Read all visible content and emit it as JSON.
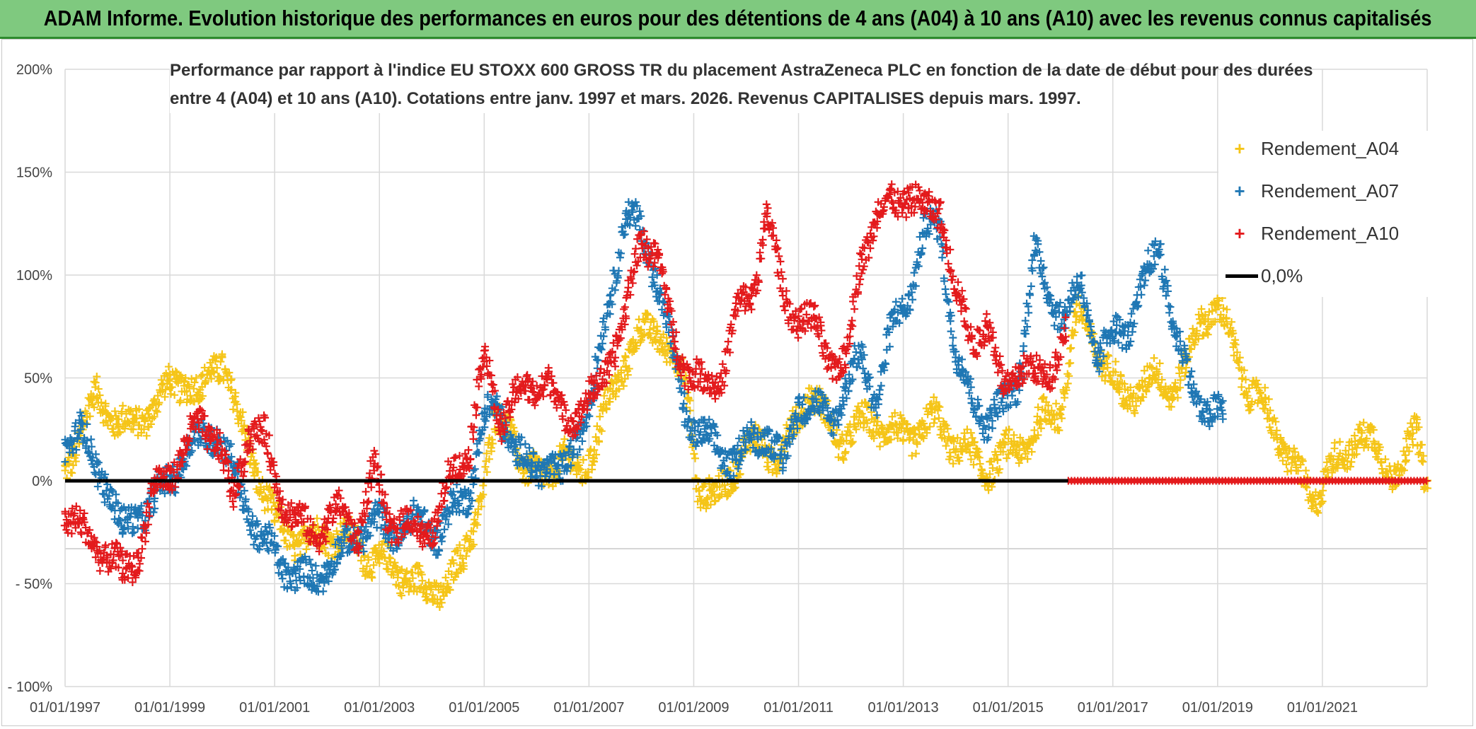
{
  "header": {
    "title": "ADAM Informe. Evolution historique des performances en euros pour des détentions de 4 ans (A04) à 10 ans (A10) avec les revenus connus capitalisés"
  },
  "chart_data": {
    "type": "scatter",
    "title_line1": "Performance par rapport à l'indice EU STOXX 600 GROSS TR  du placement AstraZeneca PLC en fonction de la date de début pour des durées",
    "title_line2": "entre 4 (A04) et 10 ans (A10). Cotations entre janv. 1997 et mars. 2026. Revenus CAPITALISES depuis mars. 1997.",
    "xlabel": "",
    "ylabel": "",
    "x_range": [
      1997.0,
      2023.0
    ],
    "ylim": [
      -100,
      200
    ],
    "y_ticks": [
      200,
      150,
      100,
      50,
      0,
      -50,
      -100
    ],
    "y_tick_labels": [
      "200%",
      "150%",
      "100%",
      "50%",
      "0%",
      "- 50%",
      "- 100%"
    ],
    "x_ticks": [
      1997,
      1999,
      2001,
      2003,
      2005,
      2007,
      2009,
      2011,
      2013,
      2015,
      2017,
      2019,
      2021
    ],
    "x_tick_labels": [
      "01/01/1997",
      "01/01/1999",
      "01/01/2001",
      "01/01/2003",
      "01/01/2005",
      "01/01/2007",
      "01/01/2009",
      "01/01/2011",
      "01/01/2013",
      "01/01/2015",
      "01/01/2017",
      "01/01/2019",
      "01/01/2021"
    ],
    "grid": true,
    "legend_position": "top-right",
    "series": [
      {
        "name": "Rendement_A04",
        "color": "#f5c518",
        "marker": "+",
        "x": [
          1997.0,
          1997.3,
          1997.6,
          1998.0,
          1998.3,
          1998.6,
          1999.0,
          1999.3,
          1999.6,
          1999.8,
          2000.0,
          2000.3,
          2000.6,
          2001.0,
          2001.5,
          2002.0,
          2002.5,
          2003.0,
          2003.5,
          2003.9,
          2004.3,
          2004.6,
          2004.9,
          2005.2,
          2005.5,
          2005.8,
          2006.1,
          2006.5,
          2006.8,
          2007.1,
          2007.4,
          2007.7,
          2008.0,
          2008.3,
          2008.6,
          2008.9,
          2009.1,
          2009.4,
          2009.7,
          2010.0,
          2010.3,
          2010.6,
          2010.9,
          2011.2,
          2011.5,
          2011.8,
          2012.1,
          2012.4,
          2012.7,
          2013.0,
          2013.3,
          2013.6,
          2013.9,
          2014.2,
          2014.5,
          2014.8,
          2015.1,
          2015.4,
          2015.7,
          2016.0,
          2016.3,
          2016.6,
          2016.9,
          2017.2,
          2017.5,
          2017.8,
          2018.1,
          2018.4,
          2018.7,
          2019.0,
          2019.3,
          2019.6,
          2019.9,
          2020.2,
          2020.5,
          2020.8,
          2021.1,
          2021.4,
          2021.7,
          2022.0,
          2022.3,
          2022.6,
          2022.8,
          2023.0
        ],
        "values": [
          5,
          25,
          40,
          30,
          25,
          35,
          45,
          50,
          40,
          55,
          60,
          30,
          10,
          -20,
          -30,
          -25,
          -30,
          -40,
          -45,
          -55,
          -50,
          -40,
          -10,
          25,
          30,
          0,
          5,
          10,
          5,
          15,
          40,
          60,
          70,
          75,
          60,
          40,
          -5,
          -10,
          5,
          15,
          20,
          10,
          25,
          45,
          30,
          20,
          25,
          30,
          25,
          20,
          25,
          30,
          20,
          15,
          5,
          10,
          15,
          20,
          30,
          35,
          80,
          70,
          55,
          40,
          45,
          50,
          45,
          55,
          80,
          85,
          65,
          45,
          35,
          20,
          5,
          -10,
          5,
          10,
          25,
          15,
          5,
          10,
          25,
          0
        ]
      },
      {
        "name": "Rendement_A07",
        "color": "#1f77b4",
        "marker": "+",
        "x": [
          1997.0,
          1997.3,
          1997.5,
          1997.8,
          1998.1,
          1998.4,
          1998.7,
          1999.0,
          1999.3,
          1999.6,
          1999.9,
          2000.2,
          2000.5,
          2000.8,
          2001.1,
          2001.4,
          2001.7,
          2002.0,
          2002.3,
          2002.6,
          2002.9,
          2003.2,
          2003.5,
          2003.8,
          2004.1,
          2004.4,
          2004.7,
          2005.0,
          2005.3,
          2005.6,
          2005.9,
          2006.2,
          2006.5,
          2006.8,
          2007.1,
          2007.4,
          2007.7,
          2008.0,
          2008.3,
          2008.6,
          2008.9,
          2009.2,
          2009.5,
          2009.8,
          2010.1,
          2010.4,
          2010.7,
          2011.0,
          2011.3,
          2011.6,
          2011.9,
          2012.2,
          2012.5,
          2012.8,
          2013.1,
          2013.4,
          2013.7,
          2014.0,
          2014.3,
          2014.6,
          2014.9,
          2015.2,
          2015.5,
          2015.8,
          2016.1,
          2016.4,
          2016.7,
          2017.0,
          2017.3,
          2017.6,
          2017.9,
          2018.2,
          2018.5,
          2018.8,
          2019.1
        ],
        "values": [
          20,
          25,
          10,
          0,
          -25,
          -15,
          -10,
          0,
          15,
          20,
          25,
          5,
          -15,
          -30,
          -40,
          -45,
          -50,
          -40,
          -35,
          -25,
          -20,
          -25,
          -22,
          -20,
          -25,
          -15,
          -5,
          30,
          35,
          15,
          5,
          10,
          0,
          25,
          45,
          90,
          130,
          120,
          100,
          60,
          30,
          20,
          15,
          10,
          20,
          25,
          5,
          40,
          35,
          30,
          45,
          60,
          40,
          75,
          90,
          120,
          125,
          60,
          40,
          30,
          35,
          50,
          110,
          90,
          80,
          95,
          60,
          70,
          75,
          95,
          115,
          70,
          45,
          35,
          30
        ]
      },
      {
        "name": "Rendement_A10",
        "color": "#e31a1c",
        "marker": "+",
        "x": [
          1997.0,
          1997.3,
          1997.6,
          1997.9,
          1998.1,
          1998.4,
          1998.7,
          1999.0,
          1999.3,
          1999.6,
          1999.9,
          2000.2,
          2000.5,
          2000.8,
          2001.1,
          2001.4,
          2001.7,
          2002.0,
          2002.3,
          2002.6,
          2002.9,
          2003.2,
          2003.5,
          2003.8,
          2004.1,
          2004.4,
          2004.7,
          2005.0,
          2005.3,
          2005.6,
          2005.9,
          2006.2,
          2006.5,
          2006.8,
          2007.1,
          2007.4,
          2007.7,
          2008.0,
          2008.3,
          2008.6,
          2008.9,
          2009.2,
          2009.5,
          2009.8,
          2010.1,
          2010.4,
          2010.7,
          2011.0,
          2011.3,
          2011.6,
          2011.9,
          2012.2,
          2012.5,
          2012.8,
          2013.1,
          2013.4,
          2013.7,
          2014.0,
          2014.3,
          2014.6,
          2014.9,
          2015.2,
          2015.5,
          2015.8,
          2016.1
        ],
        "values": [
          -15,
          -25,
          -30,
          -40,
          -45,
          -35,
          -5,
          5,
          15,
          30,
          20,
          -10,
          25,
          20,
          -5,
          -20,
          -25,
          -20,
          -15,
          -25,
          5,
          -20,
          -22,
          -25,
          -20,
          5,
          15,
          60,
          30,
          40,
          45,
          50,
          30,
          35,
          40,
          60,
          80,
          120,
          110,
          70,
          55,
          45,
          50,
          80,
          90,
          130,
          90,
          80,
          75,
          60,
          55,
          110,
          130,
          135,
          140,
          130,
          135,
          90,
          70,
          75,
          45,
          55,
          50,
          55,
          70
        ]
      },
      {
        "name": "0,0%",
        "color": "#000000",
        "marker": "line",
        "x": [
          1997.0,
          2016.15
        ],
        "values": [
          0,
          0
        ]
      }
    ],
    "zero_tail": {
      "description_color": "#e31a1c",
      "x": [
        2016.15,
        2023.0
      ],
      "values": [
        0,
        0
      ]
    }
  }
}
